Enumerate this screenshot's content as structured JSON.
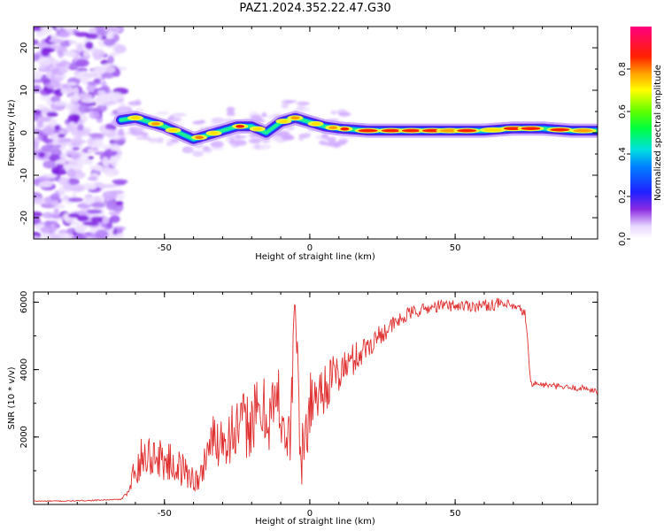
{
  "title": "PAZ1.2024.352.22.47.G30",
  "chart_data": [
    {
      "type": "heatmap",
      "xlabel": "Height of straight line (km)",
      "ylabel": "Frequency (Hz)",
      "xlim": [
        -95,
        99
      ],
      "ylim": [
        -25,
        25
      ],
      "xticks": [
        -50,
        0,
        50
      ],
      "yticks": [
        -20,
        -10,
        0,
        10,
        20
      ],
      "colorbar": {
        "label": "Normalized spectral amplitude",
        "range": [
          0,
          1
        ],
        "ticks": [
          "0.0",
          "0.2",
          "0.4",
          "0.6",
          "0.8"
        ]
      },
      "ridge": {
        "x": [
          -65,
          -60,
          -55,
          -50,
          -45,
          -40,
          -35,
          -30,
          -25,
          -20,
          -15,
          -10,
          -5,
          0,
          5,
          10,
          20,
          30,
          40,
          50,
          60,
          70,
          80,
          90,
          99
        ],
        "y": [
          3,
          3.5,
          2.5,
          1.5,
          0,
          -1.5,
          -0.5,
          0.5,
          1.5,
          1.5,
          0,
          2.5,
          3.5,
          2.5,
          1.5,
          1,
          0.5,
          0.5,
          0.5,
          0.5,
          0.5,
          1,
          1,
          0.5,
          0.5
        ]
      }
    },
    {
      "type": "line",
      "xlabel": "Height of straight line (km)",
      "ylabel": "SNR (10 * v/v)",
      "xlim": [
        -95,
        99
      ],
      "ylim": [
        0,
        6300
      ],
      "xticks": [
        -50,
        0,
        50
      ],
      "yticks": [
        2000,
        4000,
        6000
      ],
      "series": [
        {
          "color": "#e03030",
          "x": [
            -95,
            -85,
            -75,
            -65,
            -62,
            -60,
            -55,
            -50,
            -45,
            -40,
            -38,
            -35,
            -30,
            -25,
            -20,
            -15,
            -10,
            -7,
            -5,
            -3,
            0,
            5,
            10,
            15,
            20,
            25,
            30,
            35,
            40,
            45,
            50,
            55,
            60,
            65,
            70,
            74,
            75,
            76,
            80,
            85,
            90,
            95,
            99
          ],
          "y": [
            100,
            100,
            120,
            150,
            400,
            1200,
            1500,
            1300,
            1100,
            800,
            600,
            1800,
            2000,
            2200,
            2500,
            2700,
            3000,
            1500,
            6200,
            1000,
            3000,
            3500,
            3900,
            4300,
            4700,
            5100,
            5400,
            5700,
            5800,
            5900,
            5900,
            5900,
            5900,
            5950,
            5850,
            5700,
            4700,
            3600,
            3550,
            3500,
            3450,
            3450,
            3350
          ],
          "amplitude": [
            15,
            15,
            15,
            15,
            80,
            600,
            700,
            600,
            550,
            450,
            400,
            800,
            900,
            1000,
            1100,
            1200,
            1300,
            1200,
            600,
            1200,
            900,
            800,
            650,
            500,
            400,
            300,
            250,
            200,
            180,
            180,
            180,
            180,
            180,
            180,
            180,
            150,
            150,
            100,
            90,
            90,
            90,
            90,
            90
          ]
        }
      ]
    }
  ]
}
